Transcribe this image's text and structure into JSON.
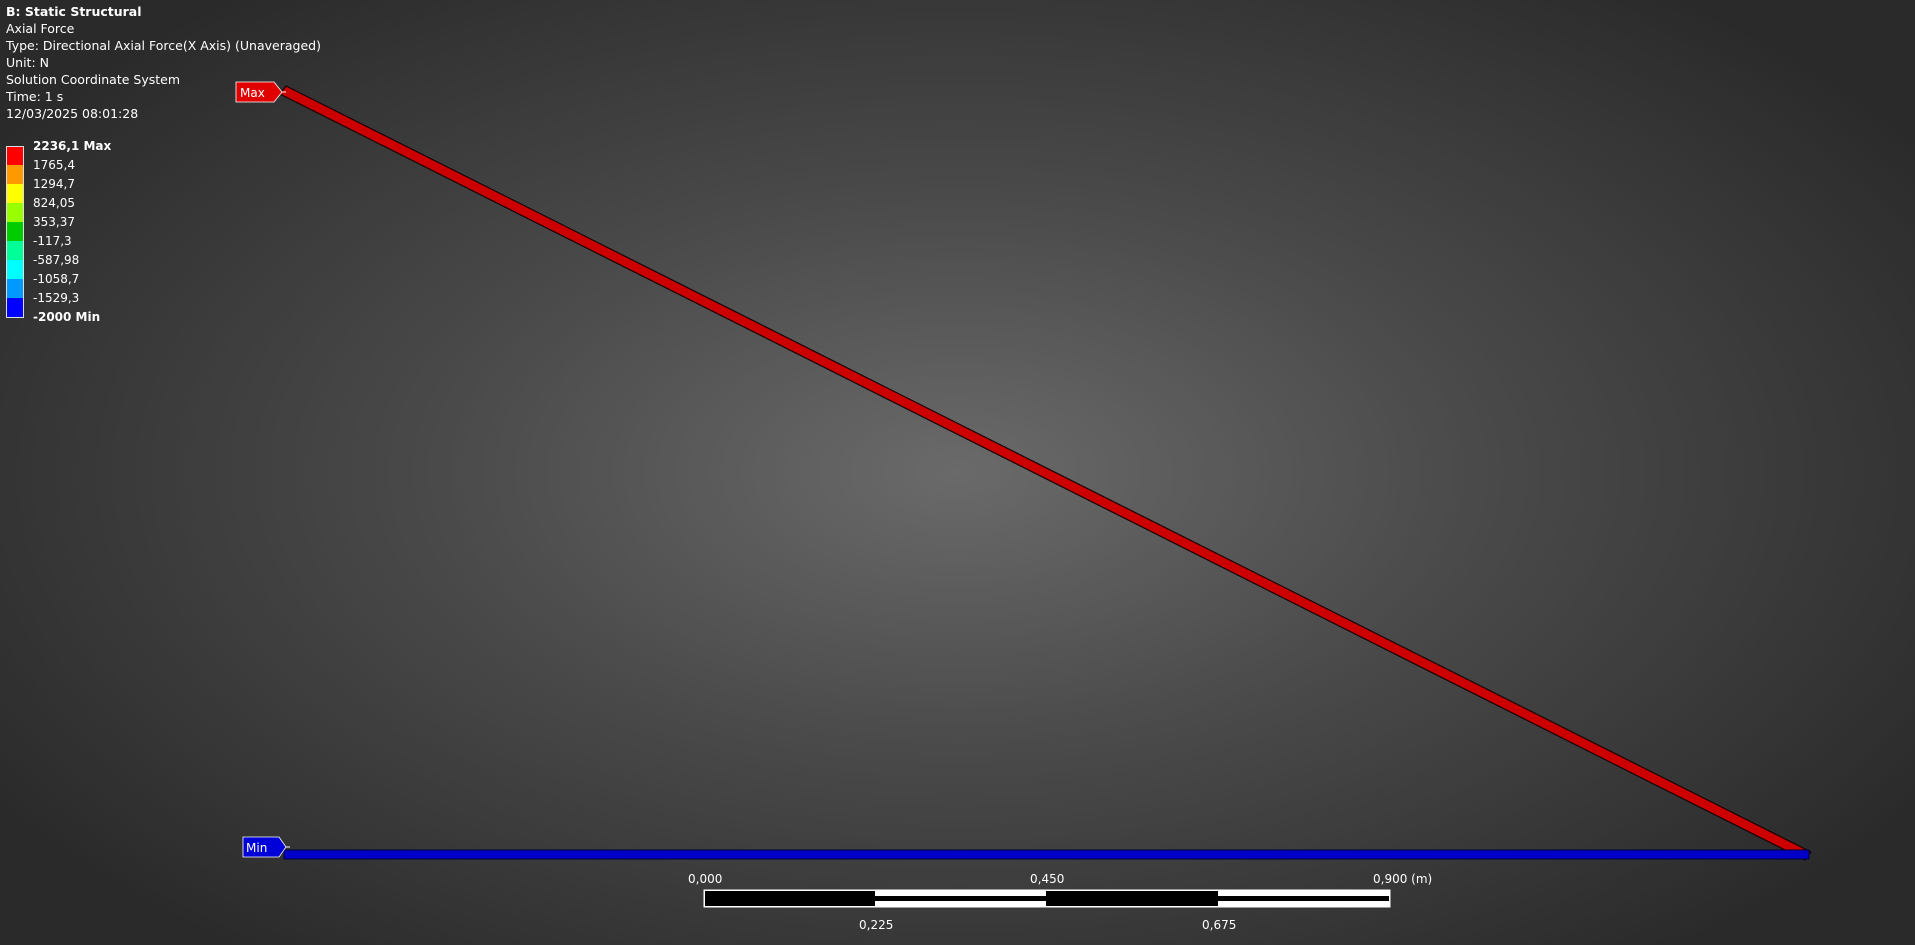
{
  "info": {
    "title": "B: Static Structural",
    "result": "Axial Force",
    "type": "Type: Directional Axial Force(X Axis) (Unaveraged)",
    "unit": "Unit: N",
    "coordinate_system": "Solution Coordinate System",
    "time": "Time: 1 s",
    "timestamp": "12/03/2025 08:01:28"
  },
  "legend": {
    "labels": [
      "2236,1 Max",
      "1765,4",
      "1294,7",
      "824,05",
      "353,37",
      "-117,3",
      "-587,98",
      "-1058,7",
      "-1529,3",
      "-2000 Min"
    ],
    "colors": [
      "#ff0000",
      "#ff9900",
      "#ffff00",
      "#99ff00",
      "#00cc00",
      "#00ff99",
      "#00ffff",
      "#0099ff",
      "#0000ff"
    ]
  },
  "model": {
    "max_tag": "Max",
    "min_tag": "Min",
    "max_color": "#d00000",
    "min_color": "#0000c8"
  },
  "scale_bar": {
    "top_labels": [
      "0,000",
      "0,450",
      "0,900 (m)"
    ],
    "bottom_labels": [
      "0,225",
      "0,675"
    ]
  }
}
